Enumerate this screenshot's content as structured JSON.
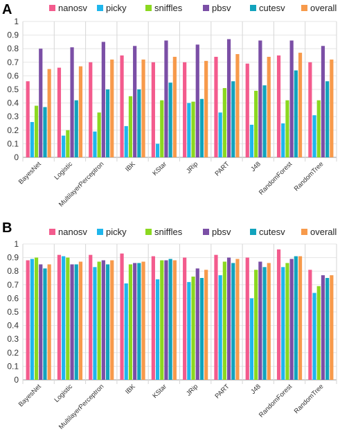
{
  "colors": {
    "nanosv": "#f35b8d",
    "picky": "#1fb6ec",
    "sniffles": "#8bd820",
    "pbsv": "#7b4fa6",
    "cutesv": "#12a3bd",
    "overall": "#f79a4b"
  },
  "chart_data": [
    {
      "panel": "A",
      "type": "bar",
      "categories": [
        "BayesNet",
        "Logistic",
        "MultilayerPerceptron",
        "IBK",
        "KStar",
        "JRip",
        "PART",
        "J48",
        "RandomForest",
        "RandomTree"
      ],
      "legend": [
        "nanosv",
        "picky",
        "sniffles",
        "pbsv",
        "cutesv",
        "overall"
      ],
      "legend_position": "top",
      "ylim": [
        0,
        1
      ],
      "yticks": [
        "0",
        "0.1",
        "0.2",
        "0.3",
        "0.4",
        "0.5",
        "0.6",
        "0.7",
        "0.8",
        "0.9",
        "1"
      ],
      "grid": true,
      "series": [
        {
          "name": "nanosv",
          "values": [
            0.56,
            0.66,
            0.7,
            0.75,
            0.7,
            0.7,
            0.74,
            0.69,
            0.75,
            0.7
          ]
        },
        {
          "name": "picky",
          "values": [
            0.26,
            0.16,
            0.19,
            0.23,
            0.1,
            0.4,
            0.33,
            0.24,
            0.25,
            0.31
          ]
        },
        {
          "name": "sniffles",
          "values": [
            0.38,
            0.2,
            0.33,
            0.45,
            0.42,
            0.41,
            0.51,
            0.49,
            0.42,
            0.42
          ]
        },
        {
          "name": "pbsv",
          "values": [
            0.8,
            0.81,
            0.85,
            0.82,
            0.86,
            0.83,
            0.87,
            0.86,
            0.86,
            0.82
          ]
        },
        {
          "name": "cutesv",
          "values": [
            0.37,
            0.42,
            0.5,
            0.5,
            0.55,
            0.43,
            0.56,
            0.53,
            0.64,
            0.56
          ]
        },
        {
          "name": "overall",
          "values": [
            0.65,
            0.67,
            0.72,
            0.72,
            0.74,
            0.71,
            0.76,
            0.74,
            0.77,
            0.72
          ]
        }
      ]
    },
    {
      "panel": "B",
      "type": "bar",
      "categories": [
        "BayesNet",
        "Logistic",
        "MultilayerPerceptron",
        "IBK",
        "KStar",
        "JRip",
        "PART",
        "J48",
        "RandomForest",
        "RandomTree"
      ],
      "legend": [
        "nanosv",
        "picky",
        "sniffles",
        "pbsv",
        "cutesv",
        "overall"
      ],
      "legend_position": "top",
      "ylim": [
        0,
        1
      ],
      "yticks": [
        "0",
        "0.1",
        "0.2",
        "0.3",
        "0.4",
        "0.5",
        "0.6",
        "0.7",
        "0.8",
        "0.9",
        "1"
      ],
      "grid": true,
      "series": [
        {
          "name": "nanosv",
          "values": [
            0.88,
            0.92,
            0.92,
            0.93,
            0.91,
            0.9,
            0.92,
            0.9,
            0.96,
            0.81
          ]
        },
        {
          "name": "picky",
          "values": [
            0.89,
            0.91,
            0.83,
            0.71,
            0.74,
            0.72,
            0.77,
            0.6,
            0.83,
            0.64
          ]
        },
        {
          "name": "sniffles",
          "values": [
            0.9,
            0.9,
            0.87,
            0.85,
            0.88,
            0.76,
            0.87,
            0.81,
            0.86,
            0.69
          ]
        },
        {
          "name": "pbsv",
          "values": [
            0.85,
            0.85,
            0.88,
            0.86,
            0.88,
            0.82,
            0.9,
            0.87,
            0.89,
            0.77
          ]
        },
        {
          "name": "cutesv",
          "values": [
            0.82,
            0.85,
            0.85,
            0.86,
            0.89,
            0.75,
            0.86,
            0.83,
            0.91,
            0.75
          ]
        },
        {
          "name": "overall",
          "values": [
            0.85,
            0.87,
            0.88,
            0.87,
            0.88,
            0.81,
            0.89,
            0.86,
            0.91,
            0.77
          ]
        }
      ]
    }
  ]
}
